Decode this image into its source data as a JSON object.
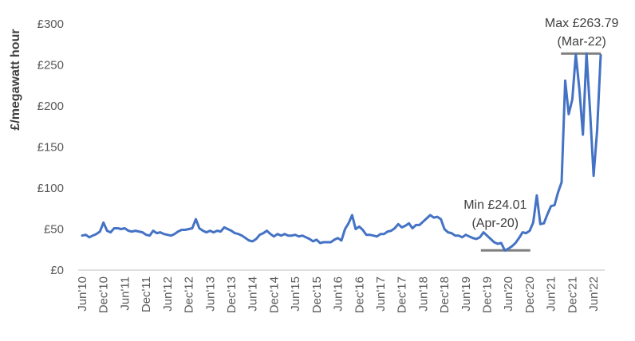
{
  "chart_data": {
    "type": "line",
    "title": "",
    "xlabel": "",
    "ylabel": "£/megawatt hour",
    "ylim": [
      0,
      300
    ],
    "yticks": [
      "£0",
      "£50",
      "£100",
      "£150",
      "£200",
      "£250",
      "£300"
    ],
    "yticks_values": [
      0,
      50,
      100,
      150,
      200,
      250,
      300
    ],
    "xticks": [
      "Jun'10",
      "Dec'10",
      "Jun'11",
      "Dec'11",
      "Jun'12",
      "Dec'12",
      "Jun'13",
      "Dec'13",
      "Jun'14",
      "Dec'14",
      "Jun'15",
      "Dec'15",
      "Jun'16",
      "Dec'16",
      "Jun'17",
      "Dec'17",
      "Jun'18",
      "Dec'18",
      "Jun'19",
      "Dec'19",
      "Jun'20",
      "Dec'20",
      "Jun'21",
      "Dec'21",
      "Jun'22"
    ],
    "grid": false,
    "legend": "none",
    "line_color": "#4472C4",
    "x_start": "2010-06",
    "series": [
      {
        "values": [
          42,
          43,
          40,
          42,
          44,
          47,
          58,
          48,
          46,
          51,
          51,
          50,
          51,
          48,
          47,
          48,
          47,
          46,
          43,
          42,
          48,
          45,
          46,
          44,
          43,
          42,
          44,
          47,
          49,
          49,
          50,
          51,
          62,
          51,
          48,
          46,
          48,
          46,
          48,
          47,
          52,
          50,
          48,
          45,
          44,
          42,
          39,
          36,
          35,
          38,
          43,
          45,
          48,
          44,
          41,
          44,
          42,
          44,
          42,
          42,
          43,
          41,
          42,
          40,
          38,
          35,
          37,
          33,
          34,
          34,
          34,
          37,
          39,
          36,
          50,
          57,
          67,
          50,
          53,
          49,
          43,
          43,
          42,
          41,
          44,
          44,
          47,
          48,
          51,
          56,
          52,
          54,
          57,
          51,
          55,
          55,
          59,
          63,
          67,
          64,
          65,
          62,
          50,
          46,
          45,
          42,
          42,
          40,
          43,
          41,
          39,
          38,
          40,
          46,
          42,
          38,
          34,
          32,
          33,
          24,
          26,
          29,
          33,
          39,
          46,
          45,
          48,
          58,
          91,
          56,
          57,
          68,
          78,
          79,
          95,
          107,
          231,
          190,
          208,
          263,
          220,
          165,
          264,
          195,
          115,
          170,
          262
        ],
        "annotations": [
          {
            "label": "Min £24.01",
            "sub": "(Apr-20)",
            "value": 24.01
          },
          {
            "label": "Max £263.79",
            "sub": "(Mar-22)",
            "value": 263.79
          }
        ]
      }
    ]
  }
}
